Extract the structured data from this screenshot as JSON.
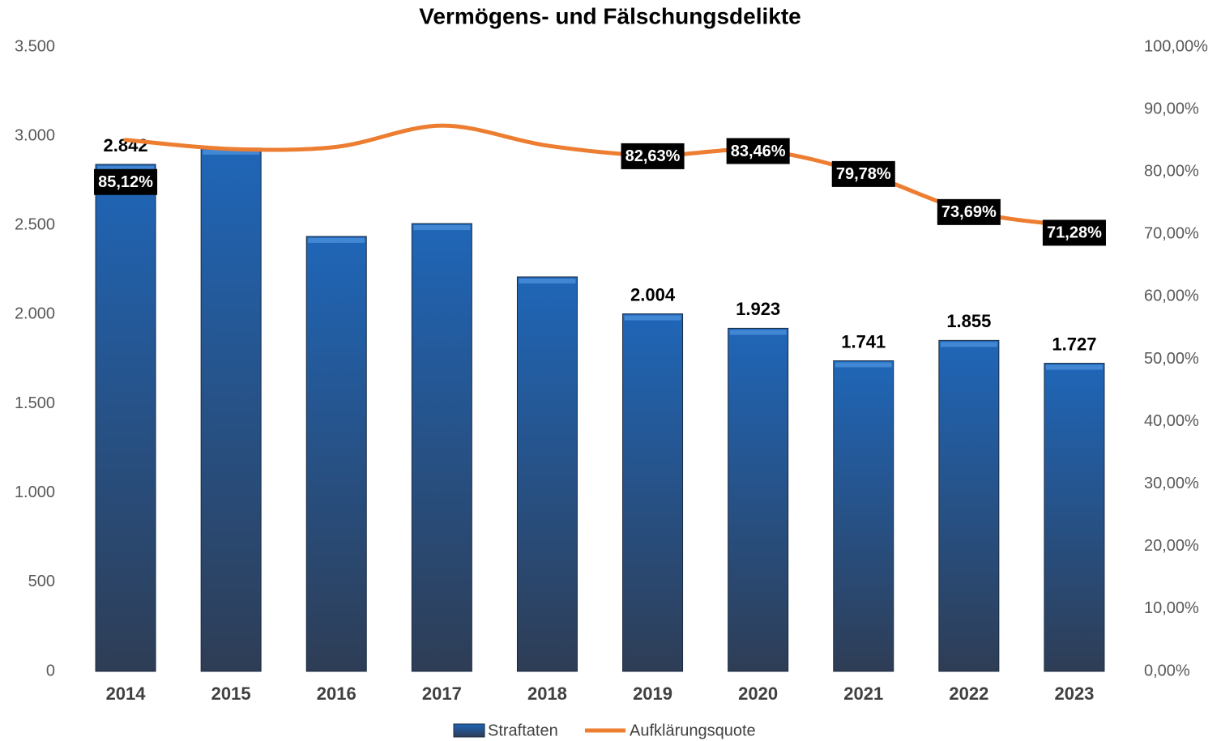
{
  "chart_data": {
    "type": "bar",
    "title": "Vermögens- und Fälschungsdelikte",
    "categories": [
      "2014",
      "2015",
      "2016",
      "2017",
      "2018",
      "2019",
      "2020",
      "2021",
      "2022",
      "2023"
    ],
    "series": [
      {
        "name": "Straftaten",
        "type": "bar",
        "color": "#1f5fae",
        "values": [
          2842,
          2933,
          2438,
          2510,
          2211,
          2004,
          1923,
          1741,
          1855,
          1727
        ],
        "value_labels": [
          "2.842",
          null,
          null,
          null,
          null,
          "2.004",
          "1.923",
          "1.741",
          "1.855",
          "1.727"
        ]
      },
      {
        "name": "Aufklärungsquote",
        "type": "line",
        "axis": "y2",
        "color": "#ed7d31",
        "values": [
          85.12,
          83.66,
          84.0,
          87.4,
          84.2,
          82.63,
          83.46,
          79.78,
          73.69,
          71.28
        ],
        "value_labels": [
          "85,12%",
          null,
          null,
          null,
          null,
          "82,63%",
          "83,46%",
          "79,78%",
          "73,69%",
          "71,28%"
        ]
      }
    ],
    "ylim": [
      0,
      3500
    ],
    "yticks": [
      0,
      500,
      {
        "value": 1000,
        "label": "1.000"
      },
      {
        "value": 1500,
        "label": "1.500"
      },
      {
        "value": 2000,
        "label": "2.000"
      },
      {
        "value": 2500,
        "label": "2.500"
      },
      {
        "value": 3000,
        "label": "3.000"
      },
      {
        "value": 3500,
        "label": "3.500"
      }
    ],
    "y2lim": [
      0,
      100
    ],
    "y2ticks": [
      {
        "value": 0,
        "label": "0,00%"
      },
      {
        "value": 10,
        "label": "10,00%"
      },
      {
        "value": 20,
        "label": "20,00%"
      },
      {
        "value": 30,
        "label": "30,00%"
      },
      {
        "value": 40,
        "label": "40,00%"
      },
      {
        "value": 50,
        "label": "50,00%"
      },
      {
        "value": 60,
        "label": "60,00%"
      },
      {
        "value": 70,
        "label": "70,00%"
      },
      {
        "value": 80,
        "label": "80,00%"
      },
      {
        "value": 90,
        "label": "90,00%"
      },
      {
        "value": 100,
        "label": "100,00%"
      }
    ],
    "legend": "bottom"
  }
}
